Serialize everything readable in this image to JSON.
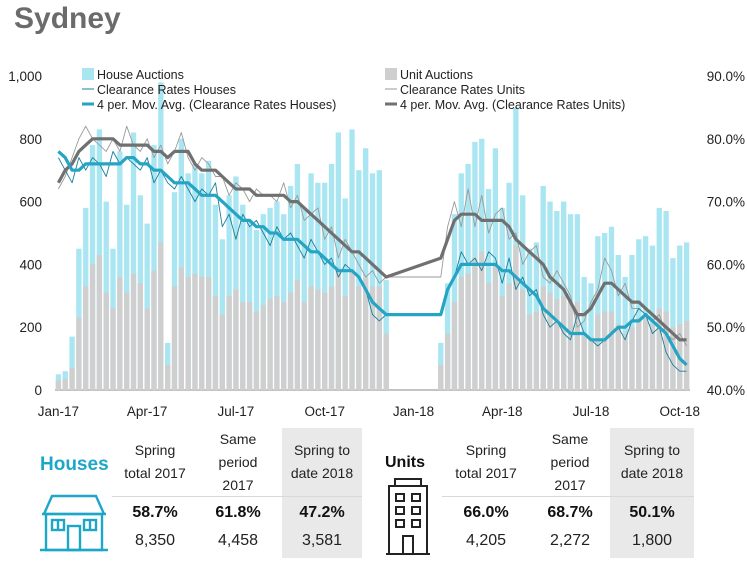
{
  "title": "Sydney",
  "colors": {
    "house_bar": "#a9e6f2",
    "unit_bar": "#cfcfcf",
    "house_line": "#26a4c4",
    "unit_line": "#707070",
    "house_raw_line": "#1b7f9b",
    "unit_raw_line": "#9a9a9a",
    "accent": "#1ea6c9"
  },
  "chart_data": {
    "type": "bar+line",
    "x_ticks": [
      "Jan-17",
      "Apr-17",
      "Jul-17",
      "Oct-17",
      "Jan-18",
      "Apr-18",
      "Jul-18",
      "Oct-18"
    ],
    "y_left": {
      "ticks": [
        "0",
        "200",
        "400",
        "600",
        "800",
        "1,000"
      ],
      "range": [
        0,
        1000
      ]
    },
    "y_right": {
      "ticks": [
        "40.0%",
        "50.0%",
        "60.0%",
        "70.0%",
        "80.0%",
        "90.0%"
      ],
      "range": [
        40,
        90
      ]
    },
    "legend": {
      "house_auctions": "House Auctions",
      "unit_auctions": "Unit Auctions",
      "clearance_houses": "Clearance Rates Houses",
      "clearance_units": "Clearance Rates Units",
      "ma_houses": "4 per. Mov. Avg. (Clearance Rates Houses)",
      "ma_units": "4 per. Mov. Avg. (Clearance Rates Units)"
    },
    "weeks": [
      "1/1/2017",
      "1/8/2017",
      "1/15/2017",
      "1/22/2017",
      "1/29/2017",
      "2/5/2017",
      "2/12/2017",
      "2/19/2017",
      "2/26/2017",
      "3/5/2017",
      "3/12/2017",
      "3/19/2017",
      "3/26/2017",
      "4/2/2017",
      "4/9/2017",
      "4/16/2017",
      "4/23/2017",
      "4/30/2017",
      "5/7/2017",
      "5/14/2017",
      "5/21/2017",
      "5/28/2017",
      "6/4/2017",
      "6/11/2017",
      "6/18/2017",
      "6/25/2017",
      "7/2/2017",
      "7/9/2017",
      "7/16/2017",
      "7/23/2017",
      "7/30/2017",
      "8/6/2017",
      "8/13/2017",
      "8/20/2017",
      "8/27/2017",
      "9/3/2017",
      "9/10/2017",
      "9/17/2017",
      "9/24/2017",
      "10/1/2017",
      "10/8/2017",
      "10/15/2017",
      "10/22/2017",
      "10/29/2017",
      "11/5/2017",
      "11/12/2017",
      "11/19/2017",
      "11/26/2017",
      "12/3/2017",
      "12/10/2017",
      "12/17/2017",
      "12/24/2017",
      "12/31/2017",
      "1/7/2018",
      "1/14/2018",
      "1/21/2018",
      "1/28/2018",
      "2/4/2018",
      "2/11/2018",
      "2/18/2018",
      "2/25/2018",
      "3/4/2018",
      "3/11/2018",
      "3/18/2018",
      "3/25/2018",
      "4/1/2018",
      "4/8/2018",
      "4/15/2018",
      "4/22/2018",
      "4/29/2018",
      "5/6/2018",
      "5/13/2018",
      "5/20/2018",
      "5/27/2018",
      "6/3/2018",
      "6/10/2018",
      "6/17/2018",
      "6/24/2018",
      "7/1/2018",
      "7/8/2018",
      "7/15/2018",
      "7/22/2018",
      "7/29/2018",
      "8/5/2018",
      "8/12/2018",
      "8/19/2018",
      "8/26/2018",
      "9/2/2018",
      "9/9/2018",
      "9/16/2018",
      "9/23/2018",
      "9/30/2018",
      "10/7/2018"
    ],
    "series": [
      {
        "name": "House Auctions",
        "type": "bar",
        "axis": "left",
        "values": [
          50,
          60,
          170,
          450,
          580,
          780,
          830,
          600,
          450,
          760,
          590,
          820,
          620,
          530,
          780,
          980,
          150,
          630,
          800,
          690,
          720,
          690,
          730,
          590,
          480,
          620,
          680,
          590,
          540,
          510,
          560,
          580,
          600,
          560,
          650,
          720,
          580,
          690,
          660,
          660,
          720,
          820,
          610,
          830,
          700,
          770,
          690,
          700,
          350,
          0,
          0,
          0,
          0,
          0,
          0,
          0,
          150,
          340,
          560,
          690,
          720,
          790,
          800,
          640,
          770,
          580,
          660,
          900,
          620,
          450,
          470,
          650,
          600,
          570,
          600,
          560,
          560,
          360,
          340,
          490,
          500,
          520,
          430,
          360,
          430,
          480,
          490,
          460,
          580,
          570,
          420,
          460,
          470
        ]
      },
      {
        "name": "Unit Auctions",
        "type": "bar",
        "axis": "left",
        "values": [
          30,
          35,
          70,
          230,
          330,
          400,
          430,
          310,
          260,
          360,
          310,
          370,
          340,
          260,
          380,
          470,
          80,
          330,
          390,
          360,
          370,
          360,
          360,
          300,
          240,
          300,
          320,
          280,
          280,
          250,
          270,
          290,
          300,
          280,
          310,
          350,
          280,
          330,
          320,
          310,
          330,
          390,
          300,
          380,
          330,
          360,
          330,
          330,
          180,
          0,
          0,
          0,
          0,
          0,
          0,
          0,
          80,
          180,
          280,
          360,
          370,
          420,
          440,
          340,
          400,
          300,
          340,
          460,
          320,
          240,
          250,
          330,
          310,
          290,
          300,
          280,
          280,
          180,
          170,
          240,
          250,
          250,
          210,
          180,
          200,
          230,
          230,
          210,
          260,
          250,
          200,
          210,
          220
        ]
      },
      {
        "name": "Clearance Rates Houses",
        "type": "line",
        "axis": "right",
        "values": [
          77,
          75,
          73,
          77,
          75,
          77,
          76,
          74,
          78,
          76,
          77,
          76,
          75,
          77,
          73,
          75,
          73,
          72,
          74,
          72,
          70,
          72,
          71,
          73,
          66,
          68,
          64,
          68,
          66,
          67,
          65,
          63,
          66,
          64,
          65,
          63,
          61,
          64,
          62,
          60,
          61,
          58,
          60,
          59,
          58,
          56,
          52,
          51,
          52,
          null,
          null,
          null,
          null,
          null,
          null,
          null,
          52,
          56,
          58,
          62,
          60,
          61,
          59,
          62,
          61,
          57,
          61,
          56,
          58,
          55,
          56,
          52,
          50,
          51,
          49,
          48,
          52,
          49,
          48,
          47,
          48,
          49,
          50,
          48,
          51,
          53,
          52,
          49,
          50,
          46,
          44,
          43,
          43
        ]
      },
      {
        "name": "Clearance Rates Units",
        "type": "line",
        "axis": "right",
        "values": [
          72,
          74,
          77,
          80,
          82,
          80,
          79,
          78,
          80,
          78,
          82,
          79,
          78,
          80,
          77,
          79,
          76,
          78,
          81,
          77,
          75,
          77,
          76,
          74,
          74,
          71,
          73,
          72,
          70,
          72,
          71,
          71,
          70,
          73,
          69,
          71,
          67,
          68,
          69,
          64,
          66,
          61,
          64,
          62,
          60,
          58,
          59,
          57,
          58,
          null,
          null,
          null,
          null,
          null,
          null,
          null,
          58,
          66,
          70,
          66,
          72,
          66,
          71,
          65,
          68,
          69,
          64,
          65,
          60,
          62,
          63,
          58,
          57,
          59,
          57,
          55,
          50,
          51,
          54,
          56,
          61,
          59,
          55,
          57,
          53,
          53,
          52,
          51,
          52,
          49,
          48,
          49,
          47
        ]
      },
      {
        "name": "4 per. Mov. Avg. (Clearance Rates Houses)",
        "type": "line",
        "axis": "right",
        "values": [
          78,
          77,
          75,
          75,
          76,
          76,
          76,
          76,
          76,
          76,
          77,
          77,
          76,
          76,
          75,
          75,
          74,
          73,
          73,
          73,
          72,
          71,
          71,
          71,
          70,
          69,
          68,
          67,
          67,
          66,
          66,
          65,
          65,
          64,
          64,
          64,
          63,
          62,
          62,
          61,
          60,
          59,
          59,
          59,
          58,
          56,
          54,
          53,
          52,
          null,
          null,
          null,
          null,
          null,
          null,
          null,
          52,
          56,
          58,
          60,
          60,
          60,
          60,
          60,
          60,
          59,
          59,
          58,
          57,
          56,
          55,
          53,
          52,
          51,
          50,
          49,
          49,
          49,
          48,
          48,
          48,
          49,
          50,
          50,
          51,
          51,
          52,
          51,
          50,
          49,
          47,
          45,
          44
        ]
      },
      {
        "name": "4 per. Mov. Avg. (Clearance Rates Units)",
        "type": "line",
        "axis": "right",
        "values": [
          73,
          75,
          76,
          78,
          79,
          80,
          80,
          80,
          80,
          79,
          79,
          79,
          79,
          79,
          78,
          78,
          77,
          78,
          78,
          78,
          76,
          75,
          75,
          75,
          74,
          73,
          72,
          72,
          72,
          71,
          71,
          71,
          71,
          71,
          70,
          70,
          69,
          68,
          67,
          66,
          65,
          64,
          63,
          62,
          62,
          61,
          60,
          59,
          58,
          null,
          null,
          null,
          null,
          null,
          null,
          null,
          61,
          64,
          67,
          68,
          68,
          68,
          67,
          67,
          67,
          67,
          66,
          64,
          63,
          62,
          61,
          60,
          58,
          57,
          56,
          54,
          52,
          52,
          53,
          55,
          57,
          57,
          56,
          55,
          54,
          54,
          53,
          52,
          51,
          50,
          49,
          48,
          48
        ]
      }
    ]
  },
  "houses": {
    "label": "Houses",
    "headers": [
      "Spring total 2017",
      "Same period 2017",
      "Spring to date 2018"
    ],
    "rates": [
      "58.7%",
      "61.8%",
      "47.2%"
    ],
    "counts": [
      "8,350",
      "4,458",
      "3,581"
    ]
  },
  "units": {
    "label": "Units",
    "headers": [
      "Spring total 2017",
      "Same period 2017",
      "Spring to date 2018"
    ],
    "rates": [
      "66.0%",
      "68.7%",
      "50.1%"
    ],
    "counts": [
      "4,205",
      "2,272",
      "1,800"
    ]
  },
  "icons": {
    "house": "house-icon",
    "units": "apartment-building-icon"
  }
}
